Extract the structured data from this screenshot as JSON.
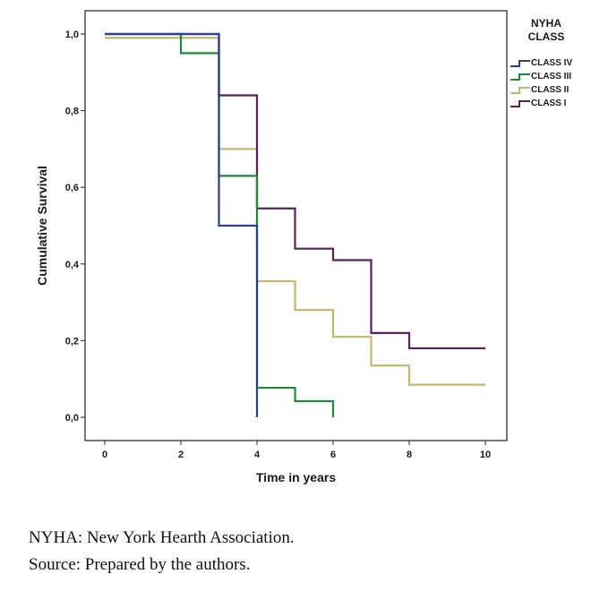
{
  "chart_data": {
    "type": "line",
    "step": true,
    "ylabel": "Cumulative Survival",
    "xlabel": "Time in years",
    "xlim": [
      0,
      10
    ],
    "ylim": [
      0,
      1
    ],
    "x_ticks": [
      "0",
      "2",
      "4",
      "6",
      "8",
      "10"
    ],
    "y_ticks": [
      "0,0",
      "0,2",
      "0,4",
      "0,6",
      "0,8",
      "1,0"
    ],
    "legend_title": "NYHA CLASS",
    "legend_title_lines": [
      "NYHA",
      "CLASS"
    ],
    "legend_position": "right",
    "grid": false,
    "series": [
      {
        "name": "CLASS IV",
        "color": "#2b3f8f",
        "x": [
          0,
          3,
          4,
          4
        ],
        "y": [
          1.0,
          0.5,
          0.5,
          0.0
        ]
      },
      {
        "name": "CLASS III",
        "color": "#1f8a3b",
        "x": [
          0,
          2,
          3,
          4,
          5,
          6,
          6
        ],
        "y": [
          1.0,
          0.95,
          0.63,
          0.077,
          0.042,
          0.042,
          0.0
        ]
      },
      {
        "name": "CLASS II",
        "color": "#c7b56a",
        "x": [
          0,
          3,
          4,
          5,
          6,
          7,
          8,
          10
        ],
        "y": [
          0.99,
          0.7,
          0.355,
          0.28,
          0.21,
          0.135,
          0.085,
          0.085
        ]
      },
      {
        "name": "CLASS I",
        "color": "#5a1f5e",
        "x": [
          0,
          3,
          4,
          5,
          6,
          7,
          8,
          10
        ],
        "y": [
          1.0,
          0.84,
          0.545,
          0.44,
          0.41,
          0.22,
          0.18,
          0.18
        ]
      }
    ]
  },
  "caption": {
    "line1": "NYHA: New York Hearth Association.",
    "line2": "Source: Prepared by the authors."
  }
}
